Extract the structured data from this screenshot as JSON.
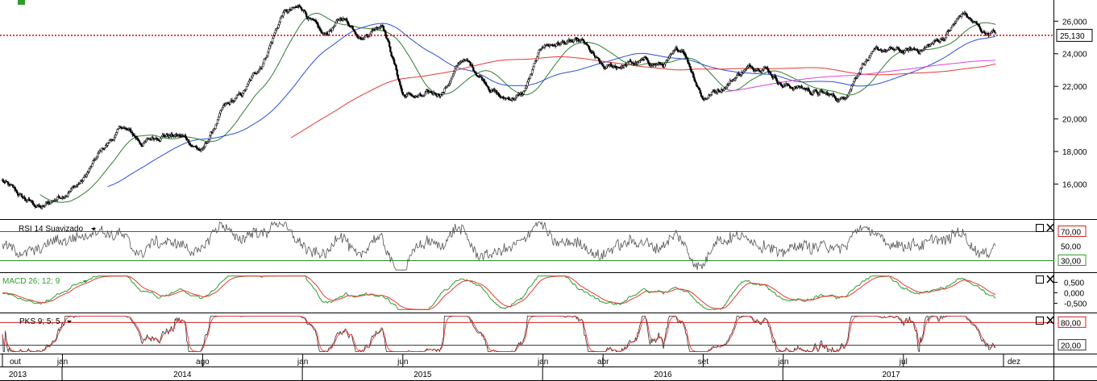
{
  "chart_data": {
    "type": "candlestick",
    "last_price": {
      "value": 25130,
      "label": "25,130"
    },
    "price_axis": {
      "ylim": [
        13900,
        27300
      ],
      "ticks": [
        16000,
        18000,
        20000,
        22000,
        24000,
        26000
      ],
      "tick_labels": [
        "16,000",
        "18,000",
        "20,000",
        "22,000",
        "24,000",
        "26,000"
      ]
    },
    "time_axis": {
      "start": "2013-10",
      "end": "2017-12",
      "months": [
        {
          "label": "out",
          "date": "2013-10"
        },
        {
          "label": "jan",
          "date": "2014-01"
        },
        {
          "label": "ago",
          "date": "2014-08"
        },
        {
          "label": "jan",
          "date": "2015-01"
        },
        {
          "label": "jun",
          "date": "2015-06"
        },
        {
          "label": "jan",
          "date": "2016-01"
        },
        {
          "label": "abr",
          "date": "2016-04"
        },
        {
          "label": "set",
          "date": "2016-09"
        },
        {
          "label": "jan",
          "date": "2017-01"
        },
        {
          "label": "jul",
          "date": "2017-07"
        },
        {
          "label": "dez",
          "date": "2017-12"
        }
      ],
      "years": [
        {
          "label": "2013",
          "date": "2013-10"
        },
        {
          "label": "2014",
          "date": "2014-01"
        },
        {
          "label": "2015",
          "date": "2015-01"
        },
        {
          "label": "2016",
          "date": "2016-01"
        },
        {
          "label": "2017",
          "date": "2017-01"
        }
      ]
    },
    "price_path": [
      {
        "t": "2013-10",
        "v": 16200
      },
      {
        "t": "2013-11",
        "v": 15100
      },
      {
        "t": "2013-12",
        "v": 14500
      },
      {
        "t": "2014-01",
        "v": 15400
      },
      {
        "t": "2014-02",
        "v": 16200
      },
      {
        "t": "2014-03",
        "v": 18100
      },
      {
        "t": "2014-04",
        "v": 19500
      },
      {
        "t": "2014-05",
        "v": 18500
      },
      {
        "t": "2014-06",
        "v": 19100
      },
      {
        "t": "2014-07",
        "v": 18900
      },
      {
        "t": "2014-08",
        "v": 18000
      },
      {
        "t": "2014-09",
        "v": 20500
      },
      {
        "t": "2014-10",
        "v": 21500
      },
      {
        "t": "2014-11",
        "v": 23500
      },
      {
        "t": "2014-12",
        "v": 26500
      },
      {
        "t": "2015-01",
        "v": 26800
      },
      {
        "t": "2015-02",
        "v": 25000
      },
      {
        "t": "2015-03",
        "v": 26200
      },
      {
        "t": "2015-04",
        "v": 25100
      },
      {
        "t": "2015-05",
        "v": 26000
      },
      {
        "t": "2015-06",
        "v": 21500
      },
      {
        "t": "2015-07",
        "v": 21300
      },
      {
        "t": "2015-08",
        "v": 21700
      },
      {
        "t": "2015-09",
        "v": 23700
      },
      {
        "t": "2015-10",
        "v": 22500
      },
      {
        "t": "2015-11",
        "v": 21200
      },
      {
        "t": "2015-12",
        "v": 21500
      },
      {
        "t": "2016-01",
        "v": 24500
      },
      {
        "t": "2016-02",
        "v": 24700
      },
      {
        "t": "2016-03",
        "v": 24600
      },
      {
        "t": "2016-04",
        "v": 23000
      },
      {
        "t": "2016-05",
        "v": 23300
      },
      {
        "t": "2016-06",
        "v": 23500
      },
      {
        "t": "2016-07",
        "v": 23300
      },
      {
        "t": "2016-08",
        "v": 24300
      },
      {
        "t": "2016-09",
        "v": 21300
      },
      {
        "t": "2016-10",
        "v": 22000
      },
      {
        "t": "2016-11",
        "v": 23000
      },
      {
        "t": "2016-12",
        "v": 23400
      },
      {
        "t": "2017-01",
        "v": 22100
      },
      {
        "t": "2017-02",
        "v": 21900
      },
      {
        "t": "2017-03",
        "v": 21500
      },
      {
        "t": "2017-04",
        "v": 21200
      },
      {
        "t": "2017-05",
        "v": 23600
      },
      {
        "t": "2017-06",
        "v": 24200
      },
      {
        "t": "2017-07",
        "v": 24100
      },
      {
        "t": "2017-08",
        "v": 24300
      },
      {
        "t": "2017-09",
        "v": 25000
      },
      {
        "t": "2017-10",
        "v": 26500
      },
      {
        "t": "2017-11",
        "v": 25300
      }
    ],
    "moving_averages": [
      {
        "color": "#2e7d32",
        "window": 8
      },
      {
        "color": "#2a4fd8",
        "window": 22
      },
      {
        "color": "#e53935",
        "window": 60
      },
      {
        "color": "#e040e0",
        "window": 150
      }
    ],
    "indicators": [
      {
        "name": "RSI 14 Suavizado",
        "ylim": [
          15,
          85
        ],
        "levels": [
          30,
          70
        ],
        "level_colors": [
          "#2e9d2e",
          "#d62020"
        ],
        "level_labels": [
          "30,00",
          "70,00"
        ],
        "ticks": [
          50
        ],
        "tick_labels": [
          "50,00"
        ],
        "current": 52
      },
      {
        "name": "MACD 26; 12; 9",
        "ylim": [
          -0.9,
          0.9
        ],
        "ticks": [
          0.5,
          0,
          -0.5
        ],
        "tick_labels": [
          "0,500",
          "0,000",
          "-0,500"
        ]
      },
      {
        "name": "PKS 9; 5; 5",
        "ylim": [
          0,
          100
        ],
        "levels": [
          20,
          80
        ],
        "level_colors": [
          "#333333",
          "#d62020"
        ],
        "level_labels": [
          "20,00",
          "80,00"
        ]
      }
    ]
  }
}
